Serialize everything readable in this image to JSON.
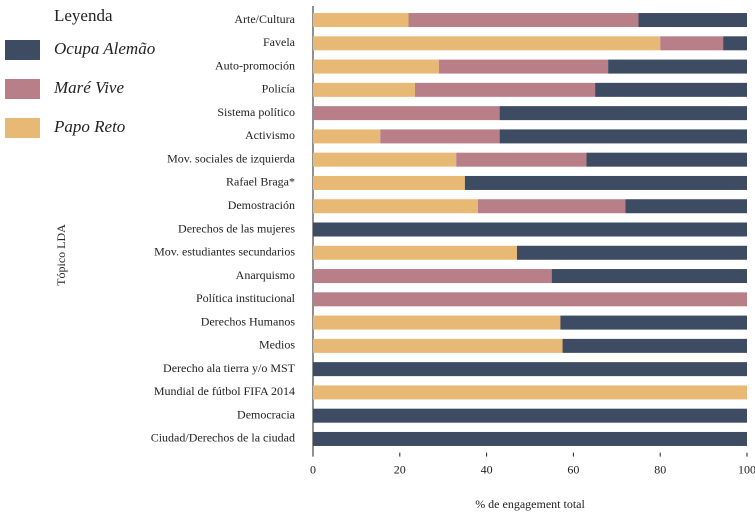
{
  "chart_data": {
    "type": "stacked-barh",
    "legend_title": "Leyenda",
    "ylabel": "Tópico LDA",
    "xlabel": "% de engagement total",
    "categories": [
      "Arte/Cultura",
      "Favela",
      "Auto-promoción",
      "Policía",
      "Sistema político",
      "Activismo",
      "Mov. sociales de izquierda",
      "Rafael Braga*",
      "Demostración",
      "Derechos de las mujeres",
      "Mov. estudiantes secundarios",
      "Anarquismo",
      "Política institucional",
      "Derechos Humanos",
      "Medios",
      "Derecho ala tierra y/o MST",
      "Mundial de fútbol FIFA 2014",
      "Democracia",
      "Ciudad/Derechos de la ciudad"
    ],
    "series": [
      {
        "name": "Ocupa Alemão",
        "color": "#3d4c63",
        "values": [
          25,
          5.5,
          32,
          35,
          57,
          57,
          37,
          65,
          28,
          100,
          53,
          45,
          0,
          43,
          42.5,
          100,
          0,
          100,
          100
        ]
      },
      {
        "name": "Maré Vive",
        "color": "#b97f89",
        "values": [
          53,
          14.5,
          39,
          41.5,
          43,
          27.5,
          30,
          0,
          34,
          0,
          0,
          55,
          100,
          0,
          0,
          0,
          0,
          0,
          0
        ]
      },
      {
        "name": "Papo Reto",
        "color": "#e8b974",
        "values": [
          22,
          80,
          29,
          23.5,
          0,
          15.5,
          33,
          35,
          38,
          0,
          47,
          0,
          0,
          57,
          57.5,
          0,
          100,
          0,
          0
        ]
      }
    ],
    "xlim": [
      0,
      100
    ],
    "xticks": [
      0,
      20,
      40,
      60,
      80,
      100
    ]
  }
}
